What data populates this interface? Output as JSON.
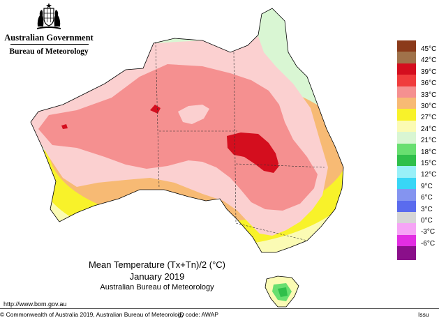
{
  "header": {
    "government": "Australian Government",
    "bureau": "Bureau of Meteorology"
  },
  "map": {
    "title": "Mean Temperature (Tx+Tn)/2 (°C)",
    "period": "January 2019",
    "source": "Australian Bureau of Meteorology"
  },
  "legend": [
    {
      "label": "45°C",
      "color": "#8b3a1a"
    },
    {
      "label": "42°C",
      "color": "#a0724a"
    },
    {
      "label": "39°C",
      "color": "#d40e1e"
    },
    {
      "label": "36°C",
      "color": "#f03c3c"
    },
    {
      "label": "33°C",
      "color": "#f59090"
    },
    {
      "label": "30°C",
      "color": "#f7ba74"
    },
    {
      "label": "27°C",
      "color": "#f8f22a"
    },
    {
      "label": "24°C",
      "color": "#fbfbb4"
    },
    {
      "label": "21°C",
      "color": "#d9f6d3"
    },
    {
      "label": "18°C",
      "color": "#68df70"
    },
    {
      "label": "15°C",
      "color": "#2fbf4a"
    },
    {
      "label": "12°C",
      "color": "#99f0f8"
    },
    {
      "label": "9°C",
      "color": "#38d6f6"
    },
    {
      "label": "6°C",
      "color": "#8494f0"
    },
    {
      "label": "3°C",
      "color": "#5a6bee"
    },
    {
      "label": "0°C",
      "color": "#d6d6d6"
    },
    {
      "label": "-3°C",
      "color": "#f6a4f6"
    },
    {
      "label": "-6°C",
      "color": "#e22ee2"
    },
    {
      "label": "",
      "color": "#8a0f8a"
    }
  ],
  "footer": {
    "url": "http://www.bom.gov.au",
    "copyright": "© Commonwealth of Australia 2019, Australian Bureau of Meteorology",
    "id_code": "ID code: AWAP",
    "issued": "Issu"
  }
}
